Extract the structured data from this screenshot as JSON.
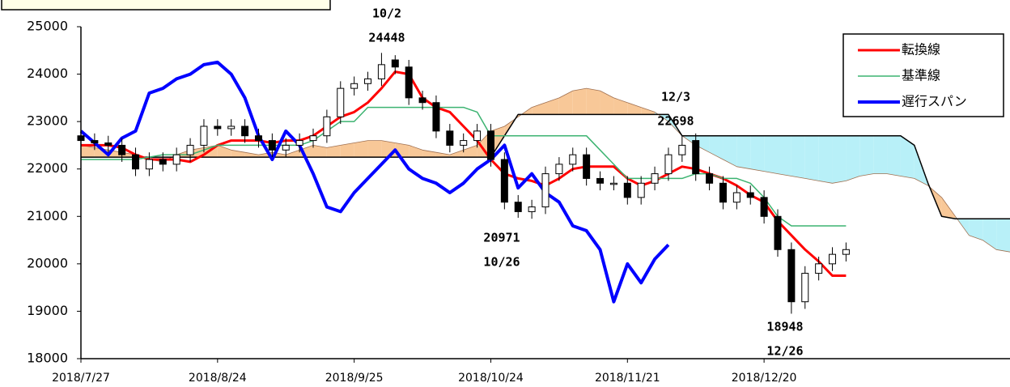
{
  "chart_data": {
    "type": "candlestick",
    "categories": [
      "2018/7/27",
      null,
      null,
      null,
      null,
      null,
      null,
      null,
      null,
      null,
      "2018/8/24",
      null,
      null,
      null,
      null,
      null,
      null,
      null,
      null,
      null,
      "2018/9/25",
      null,
      null,
      null,
      null,
      null,
      null,
      null,
      null,
      null,
      "2018/10/24",
      null,
      null,
      null,
      null,
      null,
      null,
      null,
      null,
      null,
      "2018/11/21",
      null,
      null,
      null,
      null,
      null,
      null,
      null,
      null,
      null,
      "2018/12/20",
      null,
      null,
      null,
      null,
      null,
      null,
      null,
      null,
      null,
      null,
      null,
      null,
      null,
      null,
      null,
      null,
      null,
      null
    ],
    "open": [
      22700,
      22600,
      22550,
      22500,
      22300,
      22000,
      22200,
      22100,
      22300,
      22500,
      22900,
      22850,
      22900,
      22700,
      22600,
      22400,
      22500,
      22600,
      22700,
      23100,
      23700,
      23800,
      23900,
      24300,
      24150,
      23500,
      23400,
      22800,
      22500,
      22600,
      22800,
      22200,
      21300,
      21100,
      21200,
      21900,
      22100,
      22300,
      21800,
      21700,
      21700,
      21400,
      21700,
      21900,
      22300,
      22600,
      21900,
      21700,
      21300,
      21500,
      21400,
      21000,
      20300,
      19200,
      19800,
      20000,
      20200,
      null,
      null,
      null,
      null,
      null,
      null,
      null,
      null,
      null,
      null,
      null,
      null
    ],
    "high": [
      22850,
      22750,
      22700,
      22650,
      22450,
      22350,
      22350,
      22450,
      22650,
      23050,
      23050,
      23050,
      23050,
      22850,
      22750,
      22650,
      22750,
      22850,
      23250,
      23850,
      23950,
      24050,
      24448,
      24400,
      24300,
      23650,
      23550,
      22950,
      22750,
      22950,
      22950,
      22350,
      21450,
      21350,
      22050,
      22250,
      22450,
      22450,
      21950,
      21850,
      21850,
      21850,
      22050,
      22450,
      22698,
      22750,
      22050,
      21850,
      21650,
      21650,
      21550,
      21150,
      20450,
      19950,
      20150,
      20350,
      20450,
      null,
      null,
      null,
      null,
      null,
      null,
      null,
      null,
      null,
      null,
      null,
      null
    ],
    "low": [
      22450,
      22400,
      22350,
      22150,
      21850,
      21850,
      21950,
      21950,
      22150,
      22350,
      22700,
      22700,
      22550,
      22450,
      22250,
      22250,
      22350,
      22450,
      22550,
      22950,
      23550,
      23650,
      23750,
      24000,
      23350,
      23250,
      22650,
      22350,
      22350,
      22450,
      22050,
      21150,
      20971,
      20950,
      21050,
      21750,
      21950,
      21650,
      21550,
      21550,
      21250,
      21250,
      21550,
      21750,
      22150,
      21750,
      21550,
      21150,
      21150,
      21250,
      20850,
      20150,
      18948,
      19050,
      19650,
      19850,
      20050,
      null,
      null,
      null,
      null,
      null,
      null,
      null,
      null,
      null,
      null,
      null,
      null
    ],
    "close": [
      22600,
      22550,
      22500,
      22300,
      22000,
      22200,
      22100,
      22300,
      22500,
      22900,
      22850,
      22900,
      22700,
      22600,
      22400,
      22500,
      22600,
      22700,
      23100,
      23700,
      23800,
      23900,
      24200,
      24150,
      23500,
      23400,
      22800,
      22500,
      22600,
      22800,
      22200,
      21300,
      21100,
      21200,
      21900,
      22100,
      22300,
      21800,
      21700,
      21700,
      21400,
      21700,
      21900,
      22300,
      22500,
      21900,
      21700,
      21300,
      21500,
      21400,
      21000,
      20300,
      19200,
      19800,
      20000,
      20200,
      20300,
      null,
      null,
      null,
      null,
      null,
      null,
      null,
      null,
      null,
      null,
      null,
      null
    ],
    "series": [
      {
        "name": "転換線",
        "color": "#ff0000",
        "values": [
          22500,
          22500,
          22500,
          22450,
          22300,
          22200,
          22200,
          22200,
          22150,
          22300,
          22500,
          22600,
          22600,
          22600,
          22550,
          22600,
          22600,
          22700,
          22900,
          23100,
          23200,
          23400,
          23700,
          24050,
          24000,
          23500,
          23300,
          23200,
          22900,
          22600,
          22200,
          21900,
          21800,
          21750,
          21650,
          21800,
          22000,
          22050,
          22050,
          22050,
          21800,
          21650,
          21750,
          21900,
          22050,
          22000,
          21900,
          21800,
          21650,
          21450,
          21300,
          20900,
          20600,
          20300,
          20050,
          19750,
          19750,
          null,
          null,
          null,
          null,
          null,
          null,
          null,
          null,
          null,
          null,
          null,
          null
        ]
      },
      {
        "name": "基準線",
        "color": "#3cb371",
        "values": [
          22200,
          22200,
          22200,
          22200,
          22200,
          22250,
          22300,
          22300,
          22300,
          22400,
          22500,
          22500,
          22500,
          22500,
          22500,
          22500,
          22500,
          22600,
          22800,
          23000,
          23000,
          23300,
          23300,
          23300,
          23300,
          23300,
          23300,
          23300,
          23300,
          23200,
          22700,
          22700,
          22700,
          22700,
          22700,
          22700,
          22700,
          22700,
          22400,
          22100,
          21800,
          21800,
          21800,
          21800,
          21800,
          21900,
          21900,
          21800,
          21800,
          21700,
          21400,
          21000,
          20800,
          20800,
          20800,
          20800,
          20800,
          null,
          null,
          null,
          null,
          null,
          null,
          null,
          null,
          null,
          null,
          null,
          null
        ]
      },
      {
        "name": "遅行スパン",
        "color": "#0000ff",
        "values": [
          22800,
          22550,
          22300,
          22650,
          22800,
          23600,
          23700,
          23900,
          24000,
          24200,
          24250,
          24000,
          23500,
          22700,
          22200,
          22800,
          22500,
          21900,
          21200,
          21100,
          21500,
          21800,
          22100,
          22400,
          22000,
          21800,
          21700,
          21500,
          21700,
          22000,
          22200,
          22500,
          21600,
          21900,
          21500,
          21300,
          20800,
          20700,
          20300,
          19200,
          20000,
          19600,
          20100,
          20400,
          null,
          null,
          null,
          null,
          null,
          null,
          null,
          null,
          null,
          null,
          null,
          null,
          null,
          null,
          null,
          null,
          null,
          null,
          null,
          null,
          null,
          null,
          null,
          null,
          null
        ]
      }
    ],
    "cloud": {
      "span_a": [
        22500,
        22450,
        22400,
        22350,
        22300,
        22200,
        22150,
        22300,
        22400,
        22450,
        22500,
        22400,
        22350,
        22300,
        22350,
        22300,
        22400,
        22500,
        22450,
        22500,
        22550,
        22600,
        22600,
        22550,
        22500,
        22400,
        22350,
        22300,
        22400,
        22500,
        22800,
        22900,
        23100,
        23300,
        23400,
        23500,
        23650,
        23700,
        23650,
        23500,
        23400,
        23300,
        23200,
        23000,
        22700,
        22500,
        22350,
        22200,
        22050,
        22000,
        21950,
        21900,
        21850,
        21800,
        21750,
        21700,
        21750,
        21850,
        21900,
        21900,
        21850,
        21800,
        21650,
        21400,
        21000,
        20600,
        20500,
        20300,
        20250
      ],
      "span_b": [
        22250,
        22250,
        22250,
        22250,
        22250,
        22250,
        22250,
        22250,
        22250,
        22250,
        22250,
        22250,
        22250,
        22250,
        22250,
        22250,
        22250,
        22250,
        22250,
        22250,
        22250,
        22250,
        22250,
        22250,
        22250,
        22250,
        22250,
        22250,
        22250,
        22250,
        22250,
        22700,
        23150,
        23150,
        23150,
        23150,
        23150,
        23150,
        23150,
        23150,
        23150,
        23150,
        23150,
        23150,
        22700,
        22700,
        22700,
        22700,
        22700,
        22700,
        22700,
        22700,
        22700,
        22700,
        22700,
        22700,
        22700,
        22700,
        22700,
        22700,
        22700,
        22500,
        21700,
        21000,
        20950,
        20950,
        20950,
        20950,
        20950
      ],
      "up_color": "#f8c898",
      "down_color": "#b8f0f8",
      "line_color": "#000000"
    },
    "ylim": [
      18000,
      25000
    ],
    "yticks": [
      18000,
      19000,
      20000,
      21000,
      22000,
      23000,
      24000,
      25000
    ],
    "annotations": [
      {
        "lines": [
          "10/2",
          "24448"
        ]
      },
      {
        "lines": [
          "12/3",
          "22698"
        ]
      },
      {
        "lines": [
          "20971",
          "10/26"
        ]
      },
      {
        "lines": [
          "18948",
          "12/26"
        ]
      }
    ],
    "legend": "top-right"
  }
}
